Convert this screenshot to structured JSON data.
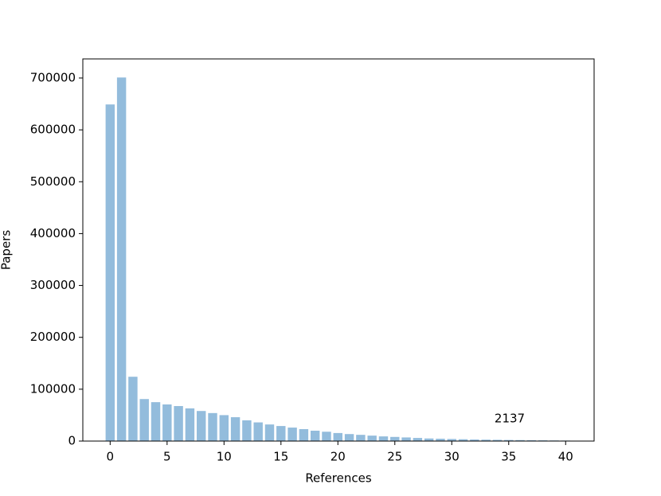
{
  "chart_data": {
    "type": "bar",
    "x": [
      0,
      1,
      2,
      3,
      4,
      5,
      6,
      7,
      8,
      9,
      10,
      11,
      12,
      13,
      14,
      15,
      16,
      17,
      18,
      19,
      20,
      21,
      22,
      23,
      24,
      25,
      26,
      27,
      28,
      29,
      30,
      31,
      32,
      33,
      34,
      35,
      36,
      37,
      38,
      39,
      40
    ],
    "values": [
      649000,
      701000,
      124000,
      81000,
      75000,
      70600,
      67500,
      63000,
      58000,
      54000,
      50000,
      46000,
      40000,
      36000,
      32000,
      29000,
      26000,
      23000,
      20000,
      18000,
      15500,
      13500,
      12000,
      10500,
      9000,
      8000,
      7000,
      6000,
      5000,
      4500,
      4000,
      3500,
      3000,
      2700,
      2400,
      2137,
      1900,
      1600,
      1400,
      1200,
      1000
    ],
    "color": "#93bcdc",
    "xlabel": "References",
    "ylabel": "Papers",
    "annotation": "2137",
    "xlim": [
      -2.4,
      42.5
    ],
    "xticks": [
      0,
      5,
      10,
      15,
      20,
      25,
      30,
      35,
      40
    ],
    "ylim": [
      0,
      736800
    ],
    "yticks": [
      0,
      100000,
      200000,
      300000,
      400000,
      500000,
      600000,
      700000
    ]
  }
}
